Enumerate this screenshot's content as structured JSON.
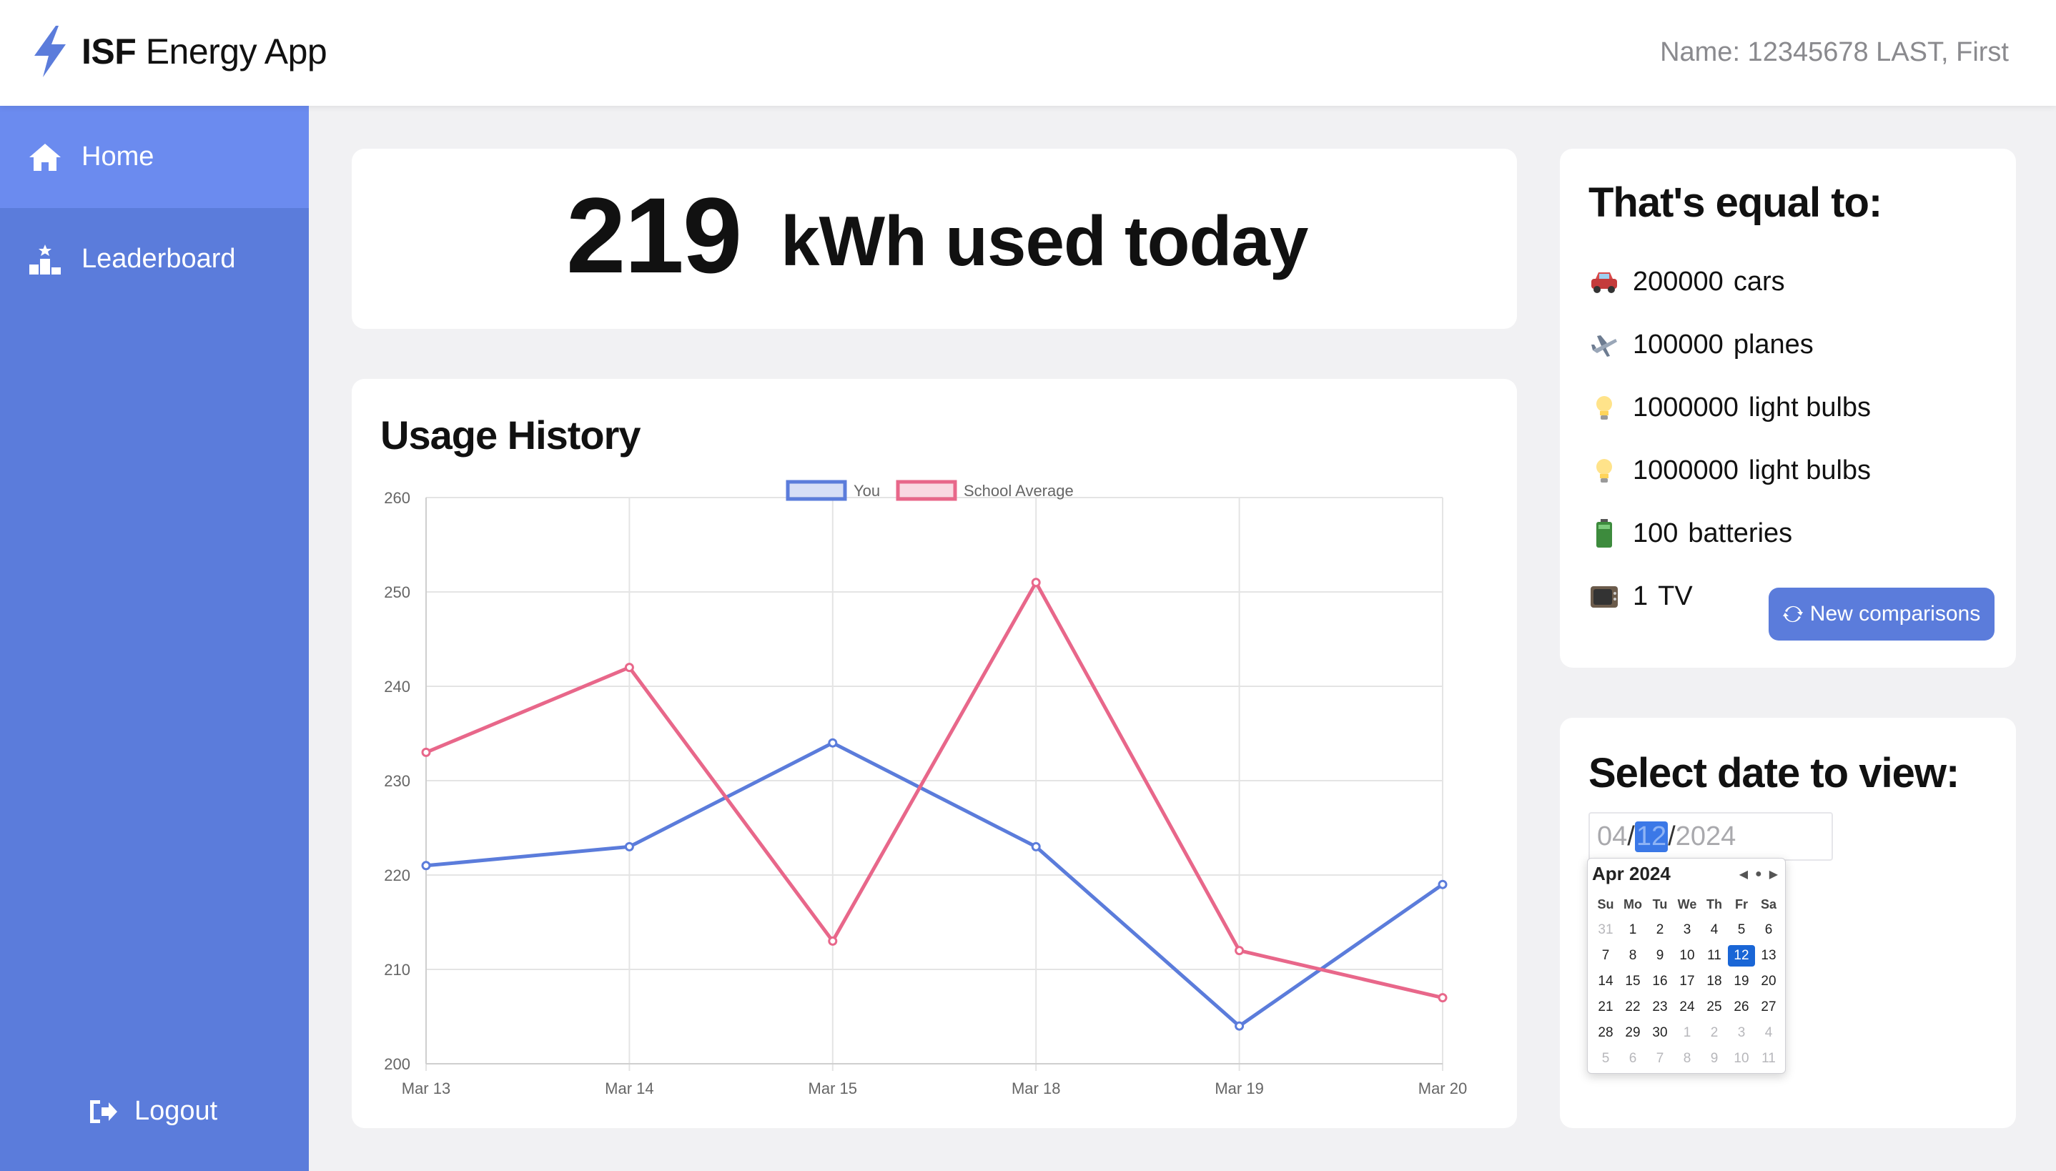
{
  "app": {
    "title_bold": "ISF",
    "title_rest": " Energy App"
  },
  "user": {
    "name_label": "Name: 12345678 LAST, First"
  },
  "sidebar": {
    "items": [
      {
        "label": "Home",
        "icon": "home-icon",
        "active": true
      },
      {
        "label": "Leaderboard",
        "icon": "leaderboard-icon",
        "active": false
      }
    ],
    "logout_label": "Logout"
  },
  "usage_today": {
    "value": "219",
    "label": "kWh used today"
  },
  "equal": {
    "title": "That's equal to:",
    "items": [
      {
        "icon": "car-icon",
        "count": "200000",
        "label": "cars"
      },
      {
        "icon": "plane-icon",
        "count": "100000",
        "label": "planes"
      },
      {
        "icon": "light-bulb-icon",
        "count": "1000000",
        "label": "light bulbs"
      },
      {
        "icon": "light-bulb-icon",
        "count": "1000000",
        "label": "light bulbs"
      },
      {
        "icon": "battery-icon",
        "count": "100",
        "label": "batteries"
      },
      {
        "icon": "tv-icon",
        "count": "1",
        "label": "TV"
      }
    ],
    "button_label": "New comparisons"
  },
  "date_picker": {
    "title": "Select date to view:",
    "month": "04",
    "day": "12",
    "year": "2024",
    "calendar": {
      "header": "Apr 2024",
      "dow": [
        "Su",
        "Mo",
        "Tu",
        "We",
        "Th",
        "Fr",
        "Sa"
      ],
      "weeks": [
        [
          "31",
          "1",
          "2",
          "3",
          "4",
          "5",
          "6"
        ],
        [
          "7",
          "8",
          "9",
          "10",
          "11",
          "12",
          "13"
        ],
        [
          "14",
          "15",
          "16",
          "17",
          "18",
          "19",
          "20"
        ],
        [
          "21",
          "22",
          "23",
          "24",
          "25",
          "26",
          "27"
        ],
        [
          "28",
          "29",
          "30",
          "1",
          "2",
          "3",
          "4"
        ],
        [
          "5",
          "6",
          "7",
          "8",
          "9",
          "10",
          "11"
        ]
      ],
      "selected": "12"
    }
  },
  "chart_title": "Usage History",
  "chart_data": {
    "type": "line",
    "title": "Usage History",
    "categories": [
      "Mar 13",
      "Mar 14",
      "Mar 15",
      "Mar 18",
      "Mar 19",
      "Mar 20"
    ],
    "series": [
      {
        "name": "You",
        "color": "#5b7cdb",
        "values": [
          221,
          223,
          234,
          223,
          204,
          219
        ]
      },
      {
        "name": "School Average",
        "color": "#e8678a",
        "values": [
          233,
          242,
          213,
          251,
          212,
          207
        ]
      }
    ],
    "ylim": [
      200,
      260
    ],
    "yticks": [
      260,
      250,
      240,
      230,
      220,
      210,
      200
    ],
    "grid": true,
    "legend": "top-center"
  },
  "colors": {
    "accent": "#5b7cdb",
    "sidebar_active": "#6b8bef",
    "series_you": "#5b7cdb",
    "series_school": "#e8678a"
  }
}
